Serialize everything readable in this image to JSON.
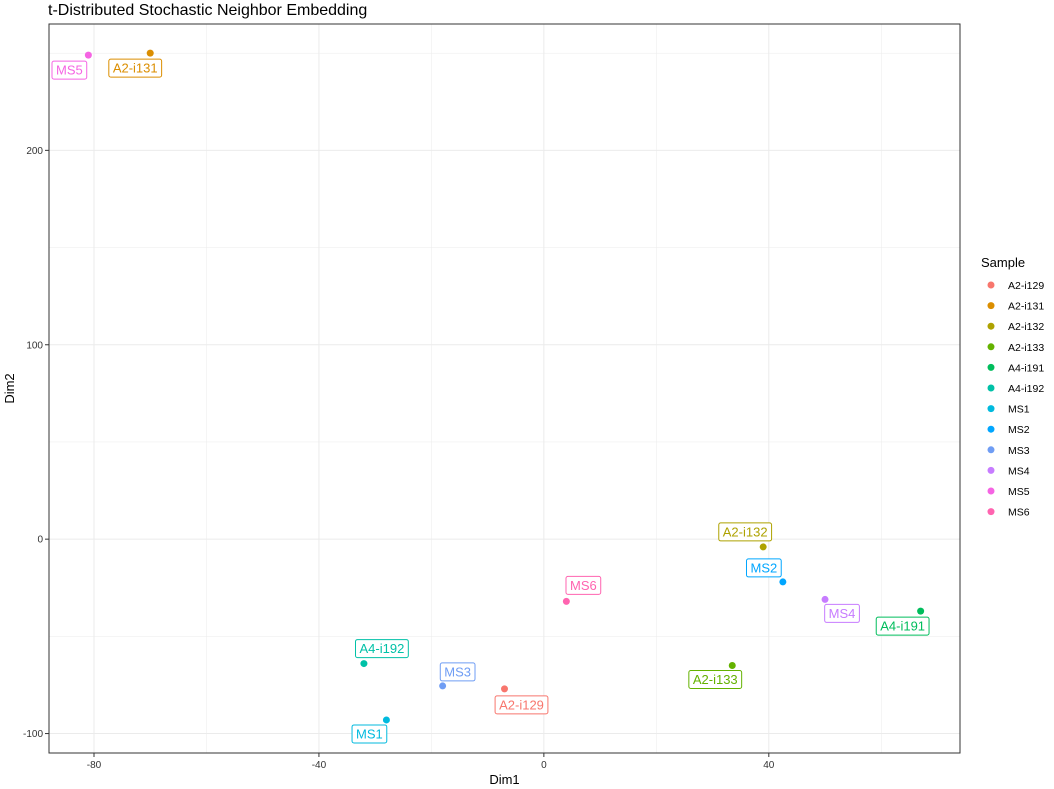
{
  "chart_data": {
    "type": "scatter",
    "title": "t-Distributed Stochastic Neighbor Embedding",
    "xlabel": "Dim1",
    "ylabel": "Dim2",
    "xlim": [
      -88,
      74
    ],
    "ylim": [
      -110,
      265
    ],
    "x_ticks": [
      -80,
      -40,
      0,
      40
    ],
    "y_ticks": [
      -100,
      0,
      100,
      200
    ],
    "grid": true,
    "legend_position": "right",
    "legend_title": "Sample",
    "series": [
      {
        "name": "A2-i129",
        "color": "#F8766D",
        "x": -7,
        "y": -77
      },
      {
        "name": "A2-i131",
        "color": "#DB8E00",
        "x": -70,
        "y": 250
      },
      {
        "name": "A2-i132",
        "color": "#AEA200",
        "x": 39,
        "y": -4
      },
      {
        "name": "A2-i133",
        "color": "#64B200",
        "x": 33.5,
        "y": -65
      },
      {
        "name": "A4-i191",
        "color": "#00BD5C",
        "x": 67,
        "y": -37
      },
      {
        "name": "A4-i192",
        "color": "#00C1A7",
        "x": -32,
        "y": -64
      },
      {
        "name": "MS1",
        "color": "#00BADE",
        "x": -28,
        "y": -93
      },
      {
        "name": "MS2",
        "color": "#00A6FF",
        "x": 42.5,
        "y": -22
      },
      {
        "name": "MS3",
        "color": "#6F9DF4",
        "x": -18,
        "y": -75.5
      },
      {
        "name": "MS4",
        "color": "#C77CFF",
        "x": 50,
        "y": -31
      },
      {
        "name": "MS5",
        "color": "#F564E3",
        "x": -81,
        "y": 249
      },
      {
        "name": "MS6",
        "color": "#FF64B0",
        "x": 4,
        "y": -32
      }
    ]
  }
}
